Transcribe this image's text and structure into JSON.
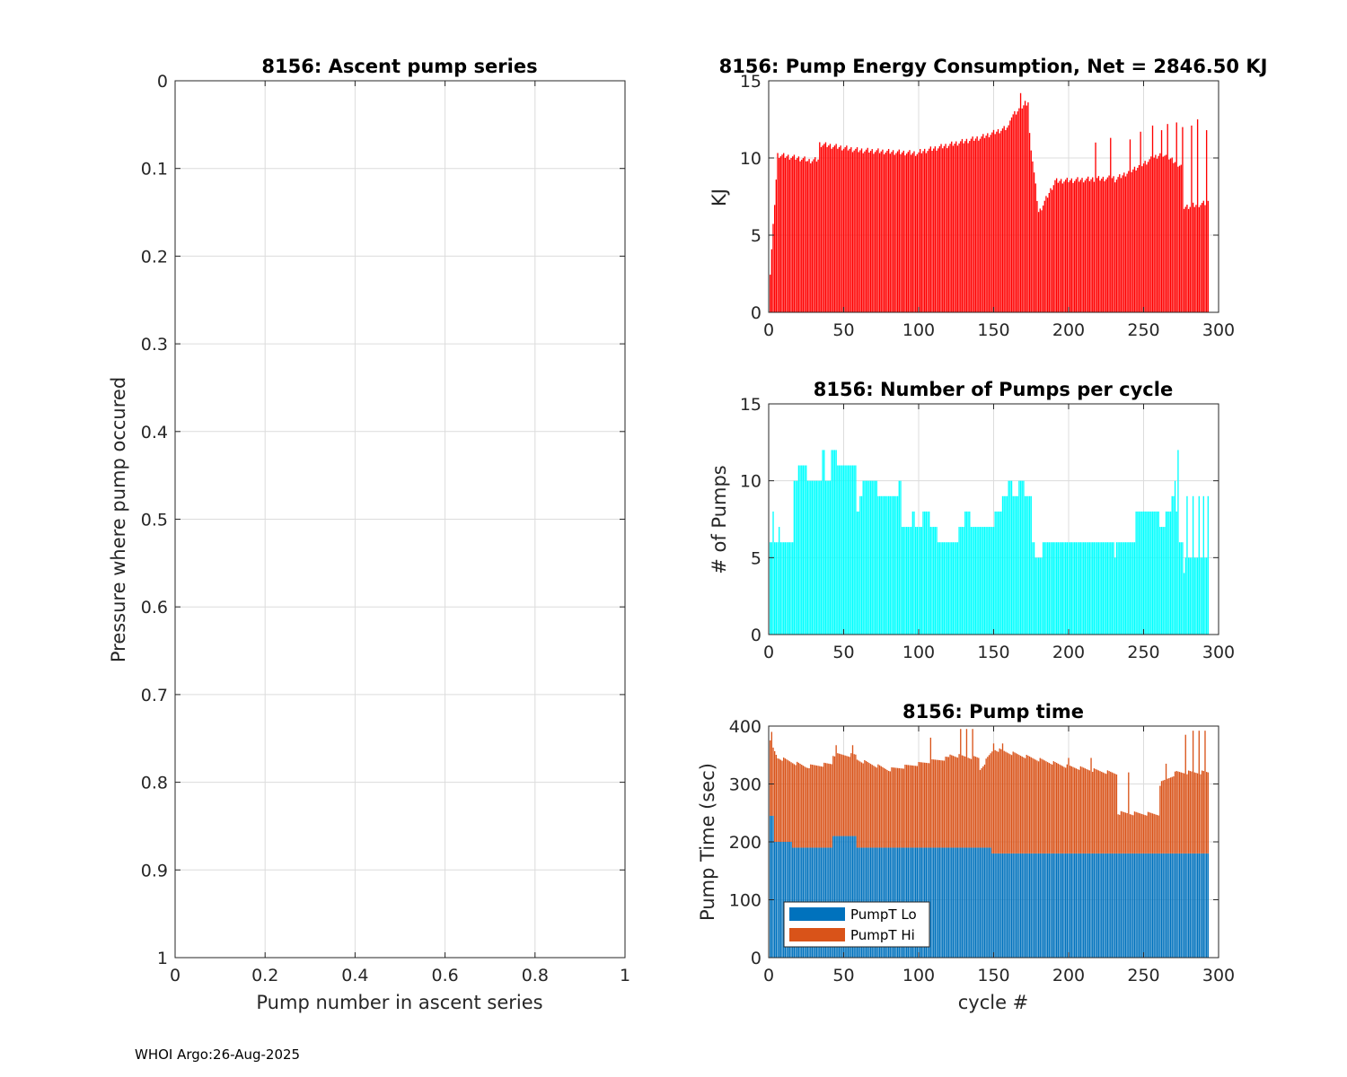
{
  "footer": "WHOI Argo:26-Aug-2025",
  "colors": {
    "energy": "#ff0000",
    "pumps": "#00ffff",
    "pumpLo": "#0072bd",
    "pumpHi": "#d95319",
    "grid": "#dcdcdc",
    "axis": "#262626"
  },
  "chart_data": [
    {
      "type": "line",
      "title": "8156: Ascent pump series",
      "xlabel": "Pump number in ascent series",
      "ylabel": "Pressure where pump occured",
      "xlim": [
        0,
        1
      ],
      "ylim": [
        0,
        1
      ],
      "y_reversed": true,
      "xticks": [
        "0",
        "0.2",
        "0.4",
        "0.6",
        "0.8",
        "1"
      ],
      "yticks": [
        "0",
        "0.1",
        "0.2",
        "0.3",
        "0.4",
        "0.5",
        "0.6",
        "0.7",
        "0.8",
        "0.9",
        "1"
      ],
      "series": []
    },
    {
      "type": "bar",
      "title": "8156: Pump Energy Consumption,  Net = 2846.50 KJ",
      "xlabel": "",
      "ylabel": "KJ",
      "xlim": [
        0,
        300
      ],
      "ylim": [
        0,
        15
      ],
      "xticks": [
        "0",
        "50",
        "100",
        "150",
        "200",
        "250",
        "300"
      ],
      "yticks": [
        "0",
        "5",
        "10",
        "15"
      ],
      "x_start": 1,
      "segments": [
        {
          "from": 1,
          "to": 5,
          "start": 2.5,
          "end": 8.6
        },
        {
          "from": 6,
          "to": 25,
          "start": 10.2,
          "end": 9.9
        },
        {
          "from": 26,
          "to": 33,
          "start": 9.8,
          "end": 9.9
        },
        {
          "from": 34,
          "to": 60,
          "start": 10.9,
          "end": 10.5
        },
        {
          "from": 61,
          "to": 100,
          "start": 10.5,
          "end": 10.3
        },
        {
          "from": 101,
          "to": 140,
          "start": 10.4,
          "end": 11.3
        },
        {
          "from": 141,
          "to": 160,
          "start": 11.3,
          "end": 12.0
        },
        {
          "from": 161,
          "to": 173,
          "start": 12.6,
          "end": 13.6
        },
        {
          "from": 174,
          "to": 180,
          "start": 11.5,
          "end": 6.5
        },
        {
          "from": 181,
          "to": 190,
          "start": 6.6,
          "end": 8.3
        },
        {
          "from": 191,
          "to": 230,
          "start": 8.5,
          "end": 8.7
        },
        {
          "from": 231,
          "to": 262,
          "start": 8.6,
          "end": 10.3
        },
        {
          "from": 263,
          "to": 275,
          "start": 10.2,
          "end": 9.5
        },
        {
          "from": 276,
          "to": 293,
          "start": 6.8,
          "end": 7.1
        }
      ],
      "spikes": [
        {
          "x": 168,
          "value": 14.2
        },
        {
          "x": 171,
          "value": 13.7
        },
        {
          "x": 218,
          "value": 11.0
        },
        {
          "x": 228,
          "value": 11.3
        },
        {
          "x": 241,
          "value": 11.2
        },
        {
          "x": 248,
          "value": 11.7
        },
        {
          "x": 256,
          "value": 12.1
        },
        {
          "x": 262,
          "value": 11.8
        },
        {
          "x": 266,
          "value": 12.2
        },
        {
          "x": 272,
          "value": 12.3
        },
        {
          "x": 276,
          "value": 12.0
        },
        {
          "x": 282,
          "value": 12.1
        },
        {
          "x": 286,
          "value": 12.5
        },
        {
          "x": 292,
          "value": 11.8
        }
      ]
    },
    {
      "type": "bar",
      "title": "8156: Number of Pumps per cycle",
      "xlabel": "",
      "ylabel": "# of Pumps",
      "xlim": [
        0,
        300
      ],
      "ylim": [
        0,
        15
      ],
      "xticks": [
        "0",
        "50",
        "100",
        "150",
        "200",
        "250",
        "300"
      ],
      "yticks": [
        "0",
        "5",
        "10",
        "15"
      ],
      "x_start": 1,
      "steps": [
        {
          "from": 1,
          "to": 2,
          "value": 6
        },
        {
          "from": 3,
          "to": 3,
          "value": 8
        },
        {
          "from": 4,
          "to": 6,
          "value": 6
        },
        {
          "from": 7,
          "to": 7,
          "value": 7
        },
        {
          "from": 8,
          "to": 16,
          "value": 6
        },
        {
          "from": 17,
          "to": 19,
          "value": 10
        },
        {
          "from": 20,
          "to": 25,
          "value": 11
        },
        {
          "from": 26,
          "to": 35,
          "value": 10
        },
        {
          "from": 36,
          "to": 37,
          "value": 12
        },
        {
          "from": 38,
          "to": 41,
          "value": 10
        },
        {
          "from": 42,
          "to": 45,
          "value": 12
        },
        {
          "from": 46,
          "to": 58,
          "value": 11
        },
        {
          "from": 59,
          "to": 60,
          "value": 8
        },
        {
          "from": 61,
          "to": 62,
          "value": 9
        },
        {
          "from": 63,
          "to": 72,
          "value": 10
        },
        {
          "from": 73,
          "to": 86,
          "value": 9
        },
        {
          "from": 87,
          "to": 88,
          "value": 10
        },
        {
          "from": 89,
          "to": 95,
          "value": 7
        },
        {
          "from": 96,
          "to": 97,
          "value": 8
        },
        {
          "from": 98,
          "to": 102,
          "value": 7
        },
        {
          "from": 103,
          "to": 107,
          "value": 8
        },
        {
          "from": 108,
          "to": 112,
          "value": 7
        },
        {
          "from": 113,
          "to": 126,
          "value": 6
        },
        {
          "from": 127,
          "to": 130,
          "value": 7
        },
        {
          "from": 131,
          "to": 134,
          "value": 8
        },
        {
          "from": 135,
          "to": 150,
          "value": 7
        },
        {
          "from": 151,
          "to": 155,
          "value": 8
        },
        {
          "from": 156,
          "to": 159,
          "value": 9
        },
        {
          "from": 160,
          "to": 162,
          "value": 10
        },
        {
          "from": 163,
          "to": 166,
          "value": 9
        },
        {
          "from": 167,
          "to": 170,
          "value": 10
        },
        {
          "from": 171,
          "to": 175,
          "value": 9
        },
        {
          "from": 176,
          "to": 177,
          "value": 6
        },
        {
          "from": 178,
          "to": 182,
          "value": 5
        },
        {
          "from": 183,
          "to": 230,
          "value": 6
        },
        {
          "from": 231,
          "to": 231,
          "value": 5
        },
        {
          "from": 232,
          "to": 244,
          "value": 6
        },
        {
          "from": 245,
          "to": 260,
          "value": 8
        },
        {
          "from": 261,
          "to": 264,
          "value": 7
        },
        {
          "from": 265,
          "to": 268,
          "value": 8
        },
        {
          "from": 269,
          "to": 270,
          "value": 9
        },
        {
          "from": 271,
          "to": 271,
          "value": 10
        },
        {
          "from": 272,
          "to": 272,
          "value": 8
        },
        {
          "from": 273,
          "to": 273,
          "value": 12
        },
        {
          "from": 274,
          "to": 276,
          "value": 6
        },
        {
          "from": 277,
          "to": 277,
          "value": 4
        },
        {
          "from": 278,
          "to": 288,
          "value": 5
        },
        {
          "from": 289,
          "to": 293,
          "value": 5
        }
      ],
      "spikes": [
        {
          "x": 279,
          "value": 9
        },
        {
          "x": 283,
          "value": 9
        },
        {
          "x": 287,
          "value": 9
        },
        {
          "x": 290,
          "value": 9
        },
        {
          "x": 293,
          "value": 9
        }
      ]
    },
    {
      "type": "bar",
      "stacked": true,
      "title": "8156: Pump time",
      "xlabel": "cycle #",
      "ylabel": "Pump Time (sec)",
      "xlim": [
        0,
        300
      ],
      "ylim": [
        0,
        400
      ],
      "xticks": [
        "0",
        "50",
        "100",
        "150",
        "200",
        "250",
        "300"
      ],
      "yticks": [
        "0",
        "100",
        "200",
        "300",
        "400"
      ],
      "legend": {
        "position": "bottom-left",
        "entries": [
          "PumpT Lo",
          "PumpT Hi"
        ]
      },
      "x_start": 1,
      "lo_steps": [
        {
          "from": 1,
          "to": 3,
          "value": 245
        },
        {
          "from": 4,
          "to": 15,
          "value": 200
        },
        {
          "from": 16,
          "to": 42,
          "value": 190
        },
        {
          "from": 43,
          "to": 58,
          "value": 210
        },
        {
          "from": 59,
          "to": 148,
          "value": 190
        },
        {
          "from": 149,
          "to": 293,
          "value": 180
        }
      ],
      "total_segments": [
        {
          "from": 1,
          "to": 6,
          "start": 372,
          "end": 345
        },
        {
          "from": 7,
          "to": 25,
          "start": 345,
          "end": 330
        },
        {
          "from": 26,
          "to": 42,
          "start": 330,
          "end": 335
        },
        {
          "from": 43,
          "to": 58,
          "start": 350,
          "end": 350
        },
        {
          "from": 59,
          "to": 80,
          "start": 342,
          "end": 325
        },
        {
          "from": 81,
          "to": 120,
          "start": 325,
          "end": 345
        },
        {
          "from": 121,
          "to": 140,
          "start": 350,
          "end": 345
        },
        {
          "from": 141,
          "to": 150,
          "start": 325,
          "end": 360
        },
        {
          "from": 151,
          "to": 200,
          "start": 360,
          "end": 330
        },
        {
          "from": 201,
          "to": 232,
          "start": 330,
          "end": 318
        },
        {
          "from": 233,
          "to": 260,
          "start": 250,
          "end": 248
        },
        {
          "from": 261,
          "to": 272,
          "start": 300,
          "end": 320
        },
        {
          "from": 273,
          "to": 293,
          "start": 320,
          "end": 320
        }
      ],
      "spikes": [
        {
          "x": 2,
          "value": 390
        },
        {
          "x": 45,
          "value": 367
        },
        {
          "x": 56,
          "value": 367
        },
        {
          "x": 108,
          "value": 380
        },
        {
          "x": 128,
          "value": 395
        },
        {
          "x": 132,
          "value": 395
        },
        {
          "x": 136,
          "value": 395
        },
        {
          "x": 150,
          "value": 370
        },
        {
          "x": 156,
          "value": 370
        },
        {
          "x": 200,
          "value": 345
        },
        {
          "x": 215,
          "value": 345
        },
        {
          "x": 240,
          "value": 320
        },
        {
          "x": 265,
          "value": 335
        },
        {
          "x": 278,
          "value": 385
        },
        {
          "x": 283,
          "value": 392
        },
        {
          "x": 287,
          "value": 392
        },
        {
          "x": 291,
          "value": 392
        }
      ]
    }
  ]
}
